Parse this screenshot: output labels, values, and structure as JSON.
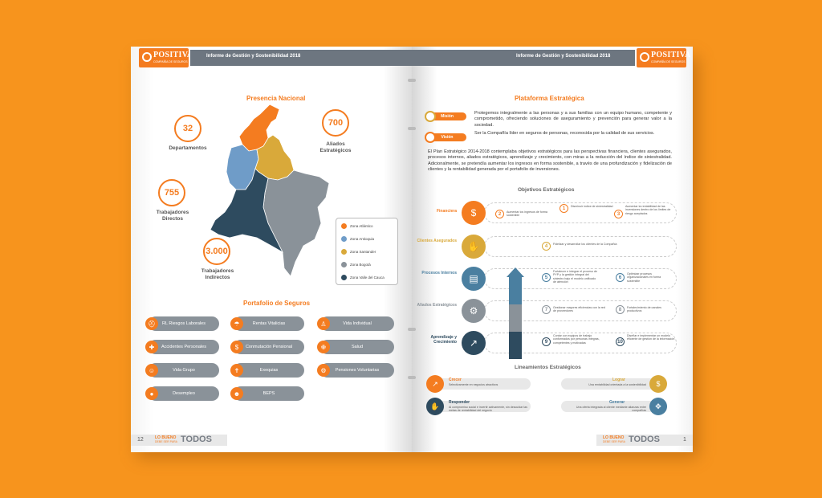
{
  "colors": {
    "background": "#f7941d",
    "accent": "#f47c20",
    "gray": "#8a9299",
    "dark_teal": "#2e4b5f",
    "steel_blue": "#4a7fa0",
    "gold": "#d9a93a",
    "light_gray": "#a0a6ac"
  },
  "header": {
    "left_title": "Informe de Gestión y Sostenibilidad 2018",
    "right_title": "Informe de Gestión y Sostenibilidad 2018",
    "logo_name": "POSITIVA",
    "logo_sub": "COMPAÑÍA DE SEGUROS"
  },
  "footer": {
    "left_page_number": "12",
    "right_page_number": "1",
    "slogan_top": "LO BUENO",
    "slogan_sub": "DEBE SER PARA",
    "slogan_big": "TODOS"
  },
  "left": {
    "presencia_title": "Presencia Nacional",
    "stats": [
      {
        "value": "32",
        "label": "Departamentos"
      },
      {
        "value": "700",
        "label": "Aliados Estratégicos"
      },
      {
        "value": "755",
        "label": "Trabajadores Directos"
      },
      {
        "value": "3.000",
        "label": "Trabajadores Indirectos"
      }
    ],
    "legend": [
      {
        "label": "Zona Atlántico",
        "color": "#f47c20"
      },
      {
        "label": "Zona Antioquia",
        "color": "#6f9cc8"
      },
      {
        "label": "Zona Santander",
        "color": "#d9a93a"
      },
      {
        "label": "Zona Bogotá",
        "color": "#8a9299"
      },
      {
        "label": "Zona Valle del Cauca",
        "color": "#2e4b5f"
      }
    ],
    "portafolio_title": "Portafolio de Seguros",
    "portafolio": [
      {
        "label": "RL Riesgos Laborales",
        "icon": "hardhat-icon"
      },
      {
        "label": "Rentas Vitalicias",
        "icon": "beach-icon"
      },
      {
        "label": "Vida Individual",
        "icon": "person-icon"
      },
      {
        "label": "Accidentes Personales",
        "icon": "injury-icon"
      },
      {
        "label": "Conmutación Pensional",
        "icon": "money-icon"
      },
      {
        "label": "Salud",
        "icon": "medkit-icon"
      },
      {
        "label": "Vida Grupo",
        "icon": "group-icon"
      },
      {
        "label": "Exequias",
        "icon": "lantern-icon"
      },
      {
        "label": "Pensiones Voluntarias",
        "icon": "piggy-bank-icon"
      },
      {
        "label": "Desempleo",
        "icon": "piggy-icon"
      },
      {
        "label": "BEPS",
        "icon": "people-icon"
      }
    ]
  },
  "right": {
    "plataforma_title": "Plataforma Estratégica",
    "mision_label": "Misión",
    "mision_text": "Protegemos integralmente a las personas y a sus familias con un equipo humano, competente y comprometido, ofreciendo soluciones de aseguramiento y prevención para generar valor a la sociedad.",
    "vision_label": "Visión",
    "vision_text": "Ser la Compañía líder en seguros de personas, reconocida por la calidad de sus servicios.",
    "plan_text": "El Plan Estratégico 2014-2018 contemplaba objetivos estratégicos para las perspectivas financiera, clientes asegurados, procesos internos, aliados estratégicos, aprendizaje y crecimiento, con miras a la reducción del índice de siniestralidad. Adicionalmente, se pretendía aumentar los ingresos en forma sostenible, a través de una profundización y fidelización de clientes y la rentabilidad generada por el portafolio de inversiones.",
    "objetivos_title": "Objetivos Estratégicos",
    "rows": [
      {
        "label": "Financiera",
        "color": "#f47c20",
        "icon": "money-icon"
      },
      {
        "label": "Clientes Asegurados",
        "color": "#d9a93a",
        "icon": "handshake-icon"
      },
      {
        "label": "Procesos Internos",
        "color": "#4a7fa0",
        "icon": "process-icon"
      },
      {
        "label": "Aliados Estratégicos",
        "color": "#8a9299",
        "icon": "gears-icon"
      },
      {
        "label": "Aprendizaje y Crecimiento",
        "color": "#2e4b5f",
        "icon": "growth-icon"
      }
    ],
    "objectives": [
      {
        "num": "1",
        "text": "Disminuir índice de siniestralidad",
        "color": "#f47c20"
      },
      {
        "num": "2",
        "text": "Aumentar los ingresos de forma sostenible",
        "color": "#f47c20"
      },
      {
        "num": "3",
        "text": "Aumentar la rentabilidad de las inversiones dentro de los límites de riesgo aceptados",
        "color": "#f47c20"
      },
      {
        "num": "4",
        "text": "Fidelizar y desarrollar los clientes de la Compañía",
        "color": "#d9a93a"
      },
      {
        "num": "5",
        "text": "Fortalecer e integrar el proceso de PYP y la gestión integral del siniestro bajo el modelo unificado de atención",
        "color": "#4a7fa0"
      },
      {
        "num": "6",
        "text": "Optimizar procesos organizacionales en forma sostenible",
        "color": "#4a7fa0"
      },
      {
        "num": "7",
        "text": "Gestionar mayores eficiencias con la red de proveedores",
        "color": "#8a9299"
      },
      {
        "num": "8",
        "text": "Fortalecimiento de canales productivos",
        "color": "#8a9299"
      },
      {
        "num": "9",
        "text": "Contar con equipos de trabajo conformados por personas íntegras, competentes y motivadas",
        "color": "#2e4b5f"
      },
      {
        "num": "10",
        "text": "Diseñar e implementar un modelo eficiente de gestión de la información",
        "color": "#2e4b5f"
      }
    ],
    "lineamientos_title": "Lineamientos Estratégicos",
    "lineamientos": [
      {
        "head": "Crecer",
        "text": "Selectivamente en negocios atractivos",
        "color": "#f47c20",
        "icon": "growth-icon"
      },
      {
        "head": "Lograr",
        "text": "Una rentabilidad orientada a la sostenibilidad",
        "color": "#d9a93a",
        "icon": "coin-icon"
      },
      {
        "head": "Responder",
        "text": "Al compromiso social e invertir activamente, sin descuidar las metas de rentabilidad del negocio",
        "color": "#2e4b5f",
        "icon": "handshake-icon"
      },
      {
        "head": "Generar",
        "text": "Una oferta integrada al cliente mediante alianzas entre compañías",
        "color": "#4a7fa0",
        "icon": "network-icon"
      }
    ]
  }
}
